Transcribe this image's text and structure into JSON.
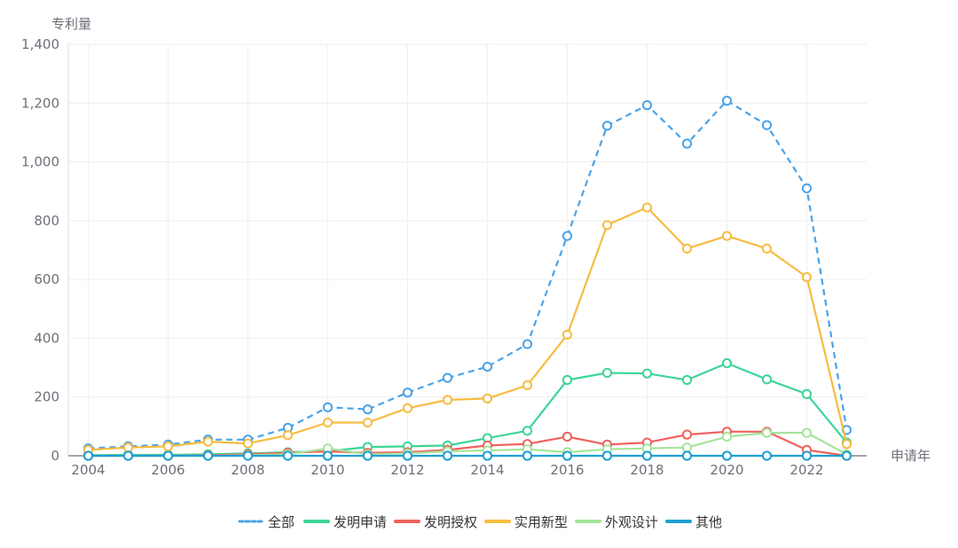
{
  "chart_data": {
    "type": "line",
    "ylabel": "专利量",
    "xlabel": "申请年",
    "ylim": [
      0,
      1400
    ],
    "yticks": [
      0,
      200,
      400,
      600,
      800,
      1000,
      1200,
      1400
    ],
    "ytick_labels": [
      "0",
      "200",
      "400",
      "600",
      "800",
      "1,000",
      "1,200",
      "1,400"
    ],
    "xticks": [
      "2004",
      "2006",
      "2008",
      "2010",
      "2012",
      "2014",
      "2016",
      "2018",
      "2020",
      "2022"
    ],
    "categories": [
      "2004",
      "2005",
      "2006",
      "2007",
      "2008",
      "2009",
      "2010",
      "2011",
      "2012",
      "2013",
      "2014",
      "2015",
      "2016",
      "2017",
      "2018",
      "2019",
      "2020",
      "2021",
      "2022",
      "2023"
    ],
    "grid": true,
    "legend_position": "bottom-center",
    "series": [
      {
        "name": "全部",
        "color": "#4aa3e8",
        "dashed": true,
        "values": [
          25,
          32,
          38,
          55,
          55,
          95,
          165,
          158,
          215,
          265,
          303,
          380,
          748,
          1123,
          1193,
          1062,
          1208,
          1125,
          910,
          88
        ]
      },
      {
        "name": "发明申请",
        "color": "#3dd598",
        "dashed": false,
        "values": [
          2,
          3,
          3,
          5,
          8,
          12,
          15,
          30,
          32,
          35,
          60,
          85,
          258,
          282,
          280,
          258,
          315,
          260,
          210,
          45
        ]
      },
      {
        "name": "发明授权",
        "color": "#f0625e",
        "dashed": false,
        "values": [
          0,
          0,
          0,
          2,
          5,
          10,
          15,
          10,
          12,
          20,
          35,
          40,
          65,
          38,
          45,
          72,
          82,
          82,
          20,
          0
        ]
      },
      {
        "name": "实用新型",
        "color": "#f6bc41",
        "dashed": false,
        "values": [
          20,
          28,
          32,
          48,
          42,
          70,
          113,
          113,
          162,
          190,
          195,
          240,
          412,
          785,
          845,
          705,
          748,
          705,
          608,
          40
        ]
      },
      {
        "name": "外观设计",
        "color": "#a5e59a",
        "dashed": false,
        "values": [
          0,
          0,
          0,
          0,
          2,
          5,
          25,
          5,
          8,
          15,
          18,
          22,
          12,
          22,
          25,
          28,
          65,
          78,
          78,
          5
        ]
      },
      {
        "name": "其他",
        "color": "#1f9fd4",
        "dashed": false,
        "values": [
          0,
          0,
          0,
          0,
          0,
          0,
          0,
          0,
          0,
          0,
          0,
          0,
          0,
          0,
          0,
          0,
          0,
          0,
          0,
          0
        ]
      }
    ]
  }
}
